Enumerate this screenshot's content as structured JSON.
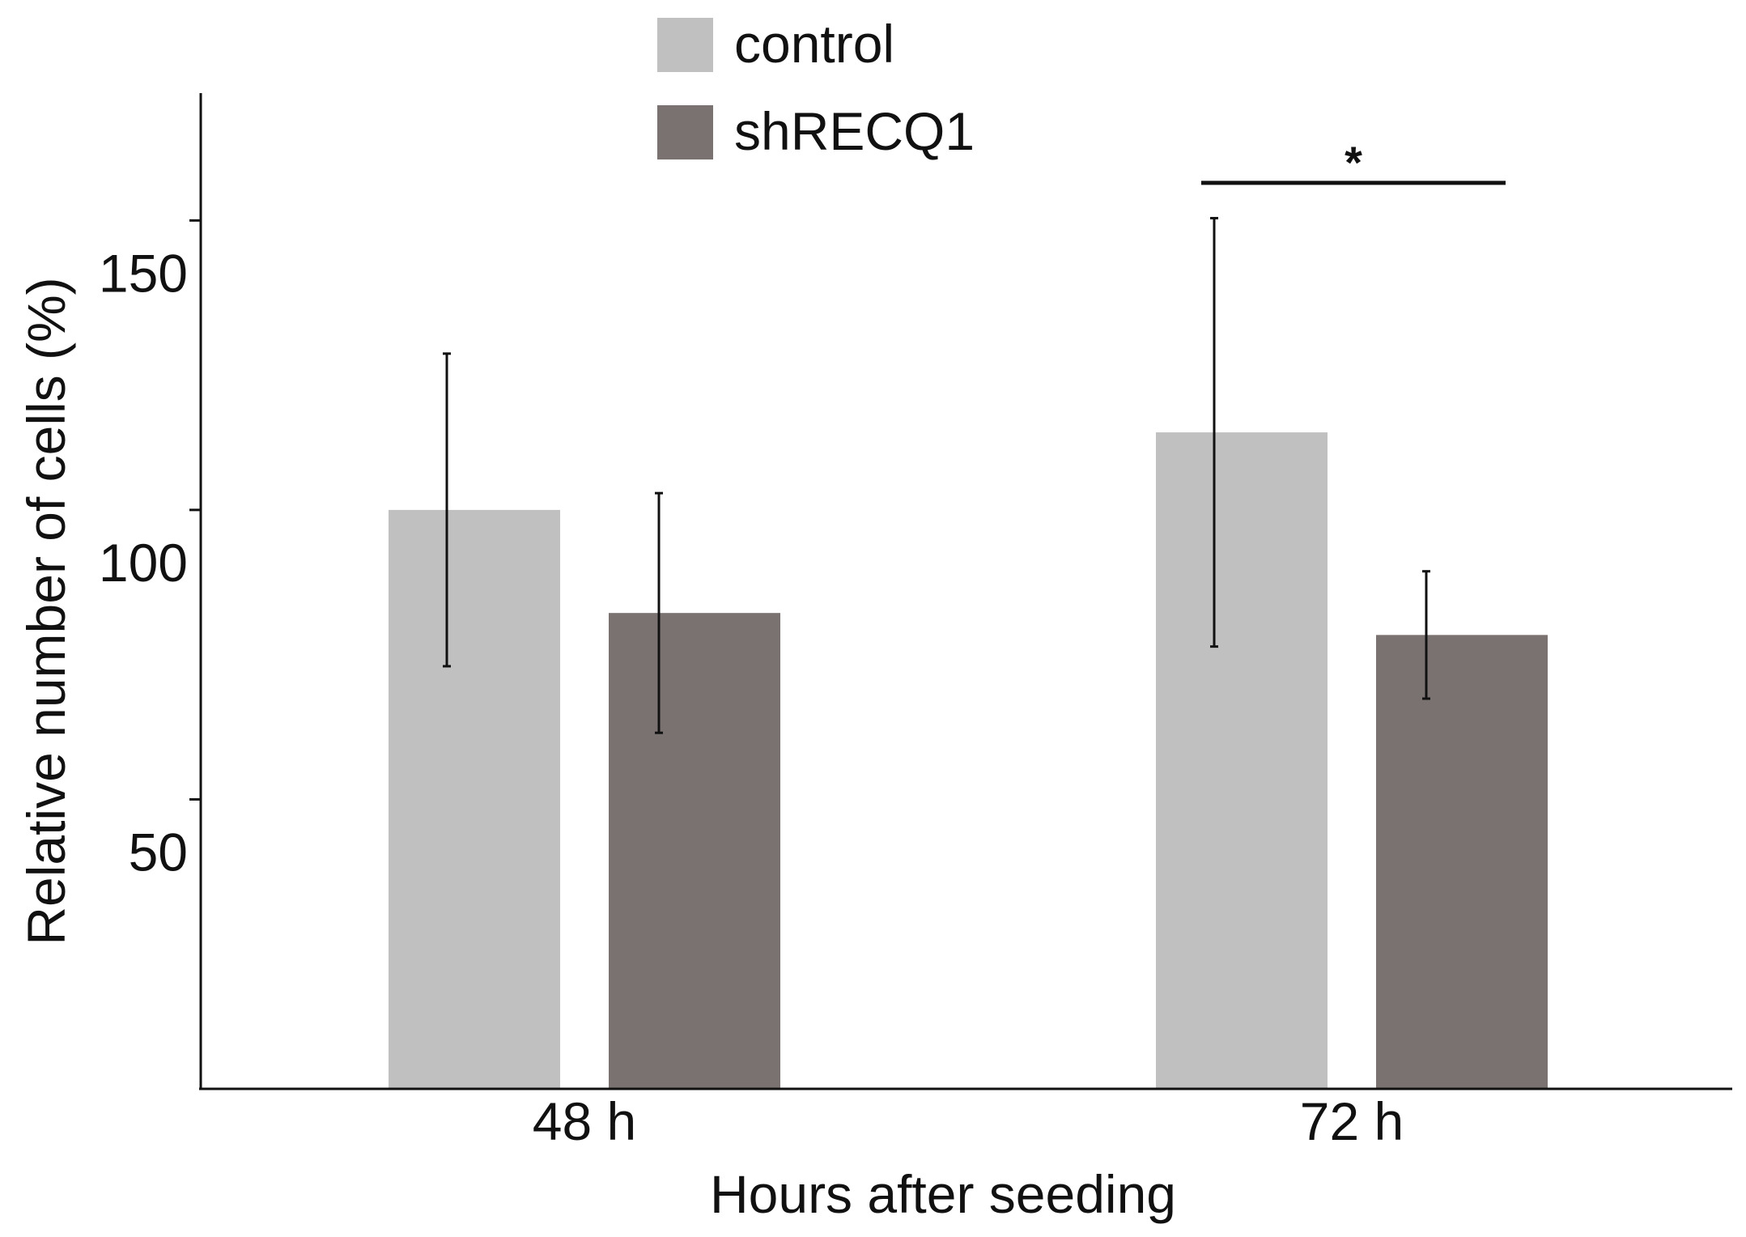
{
  "chart_data": {
    "type": "bar",
    "title": "",
    "xlabel": "Hours after seeding",
    "ylabel": "Relative number of cells (%)",
    "ylim": [
      0,
      172
    ],
    "yticks": [
      50,
      100,
      150
    ],
    "ytick_labels": [
      "50",
      "100",
      "150"
    ],
    "grid": false,
    "legend_position": "top-center",
    "categories": [
      "48 h",
      "72 h"
    ],
    "series": [
      {
        "name": "control",
        "color": "#c0c0c0",
        "values": [
          100,
          113.4
        ],
        "errors": [
          27,
          37
        ]
      },
      {
        "name": "shRECQ1",
        "color": "#7a7271",
        "values": [
          82.2,
          78.4
        ],
        "errors": [
          20.7,
          11
        ]
      }
    ],
    "annotations": [
      {
        "type": "significance",
        "text": "*",
        "category": "72 h",
        "y": 156.5
      }
    ]
  }
}
